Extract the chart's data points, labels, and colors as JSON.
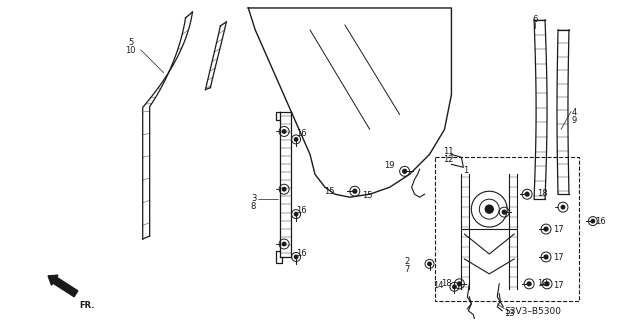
{
  "bg_color": "#ffffff",
  "fig_width": 6.26,
  "fig_height": 3.2,
  "dpi": 100,
  "line_color": "#1a1a1a",
  "label_fontsize": 6.0
}
